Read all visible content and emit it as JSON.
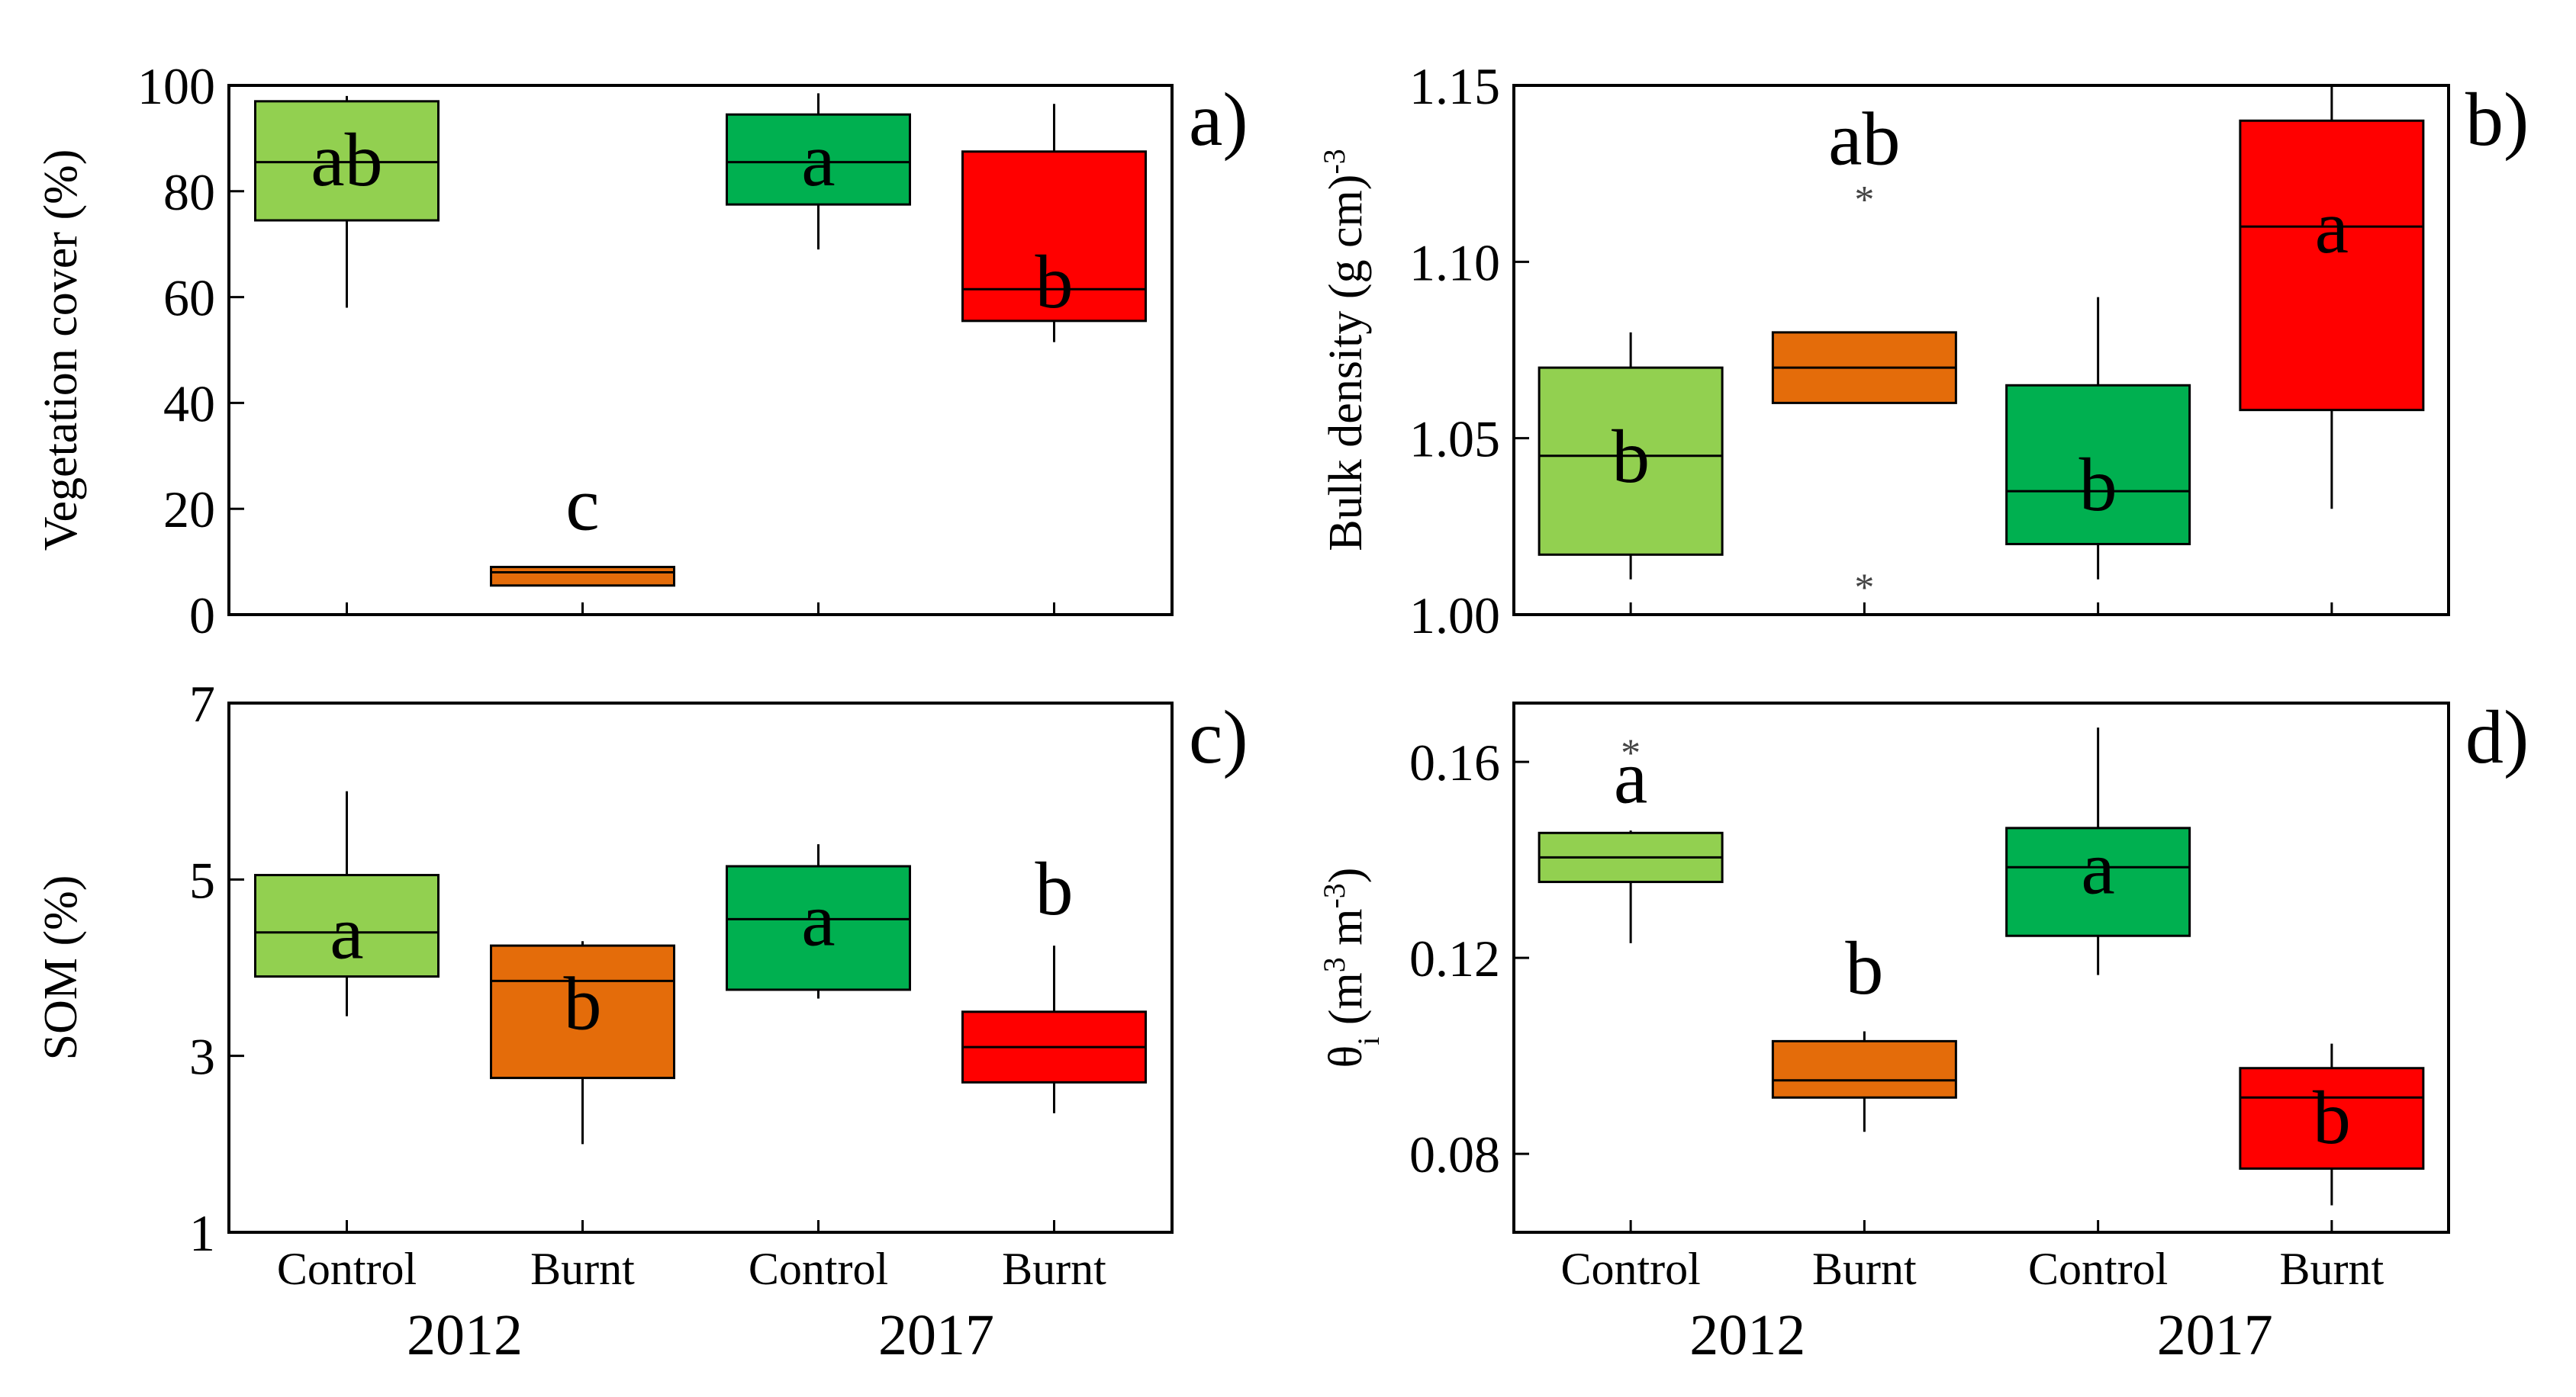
{
  "colors": {
    "control_2012": "#92d050",
    "burnt_2012": "#e46c0a",
    "control_2017": "#00b050",
    "burnt_2017": "#ff0000"
  },
  "chart_data": [
    {
      "type": "box",
      "panel_label": "a)",
      "ylabel": "Vegetation cover (%)",
      "ylim": [
        0,
        100
      ],
      "yticks": [
        "0",
        "20",
        "40",
        "60",
        "80",
        "100"
      ],
      "categories": [
        "Control",
        "Burnt",
        "Control",
        "Burnt"
      ],
      "groups": [
        "2012",
        "2017"
      ],
      "boxes": [
        {
          "name": "Control 2012",
          "color": "#92d050",
          "min": 58,
          "q1": 74.5,
          "median": 85.5,
          "q3": 97,
          "max": 98,
          "outliers": [],
          "letter": "ab",
          "letter_at": 86
        },
        {
          "name": "Burnt 2012",
          "color": "#e46c0a",
          "min": 5.5,
          "q1": 5.5,
          "median": 8,
          "q3": 9,
          "max": 9,
          "outliers": [],
          "letter": "c",
          "letter_at": 21
        },
        {
          "name": "Control 2017",
          "color": "#00b050",
          "min": 69,
          "q1": 77.5,
          "median": 85.5,
          "q3": 94.5,
          "max": 98.5,
          "outliers": [],
          "letter": "a",
          "letter_at": 86
        },
        {
          "name": "Burnt 2017",
          "color": "#ff0000",
          "min": 51.5,
          "q1": 55.5,
          "median": 61.5,
          "q3": 87.5,
          "max": 96.5,
          "outliers": [],
          "letter": "b",
          "letter_at": 63
        }
      ]
    },
    {
      "type": "box",
      "panel_label": "b)",
      "ylabel": "Bulk density (g cm",
      "ylabel_sup": "-3",
      "ylabel_end": ")",
      "ylim": [
        1.0,
        1.15
      ],
      "yticks": [
        "1.00",
        "1.05",
        "1.10",
        "1.15"
      ],
      "categories": [
        "Control",
        "Burnt",
        "Control",
        "Burnt"
      ],
      "groups": [
        "2012",
        "2017"
      ],
      "boxes": [
        {
          "name": "Control 2012",
          "color": "#92d050",
          "min": 1.01,
          "q1": 1.017,
          "median": 1.045,
          "q3": 1.07,
          "max": 1.08,
          "outliers": [],
          "letter": "b",
          "letter_at": 1.045
        },
        {
          "name": "Burnt 2012",
          "color": "#e46c0a",
          "min": 1.06,
          "q1": 1.06,
          "median": 1.07,
          "q3": 1.08,
          "max": 1.08,
          "outliers": [
            1.12,
            1.01
          ],
          "letter": "ab",
          "letter_at": 1.135
        },
        {
          "name": "Control 2017",
          "color": "#00b050",
          "min": 1.01,
          "q1": 1.02,
          "median": 1.035,
          "q3": 1.065,
          "max": 1.09,
          "outliers": [],
          "letter": "b",
          "letter_at": 1.037
        },
        {
          "name": "Burnt 2017",
          "color": "#ff0000",
          "min": 1.03,
          "q1": 1.058,
          "median": 1.11,
          "q3": 1.14,
          "max": 1.15,
          "outliers": [],
          "letter": "a",
          "letter_at": 1.11
        }
      ]
    },
    {
      "type": "box",
      "panel_label": "c)",
      "ylabel": "SOM (%)",
      "ylim": [
        1,
        7
      ],
      "yticks": [
        "1",
        "3",
        "5",
        "7"
      ],
      "categories": [
        "Control",
        "Burnt",
        "Control",
        "Burnt"
      ],
      "groups": [
        "2012",
        "2017"
      ],
      "boxes": [
        {
          "name": "Control 2012",
          "color": "#92d050",
          "min": 3.45,
          "q1": 3.9,
          "median": 4.4,
          "q3": 5.05,
          "max": 6.0,
          "outliers": [],
          "letter": "a",
          "letter_at": 4.4
        },
        {
          "name": "Burnt 2012",
          "color": "#e46c0a",
          "min": 2.0,
          "q1": 2.75,
          "median": 3.85,
          "q3": 4.25,
          "max": 4.3,
          "outliers": [],
          "letter": "b",
          "letter_at": 3.6
        },
        {
          "name": "Control 2017",
          "color": "#00b050",
          "min": 3.65,
          "q1": 3.75,
          "median": 4.55,
          "q3": 5.15,
          "max": 5.4,
          "outliers": [],
          "letter": "a",
          "letter_at": 4.55
        },
        {
          "name": "Burnt 2017",
          "color": "#ff0000",
          "min": 2.35,
          "q1": 2.7,
          "median": 3.1,
          "q3": 3.5,
          "max": 4.25,
          "outliers": [],
          "letter": "b",
          "letter_at": 4.9
        }
      ]
    },
    {
      "type": "box",
      "panel_label": "d)",
      "ylabel": "θ",
      "ylabel_sub": "i",
      "ylabel_end": " (m",
      "ylabel_sup": "3",
      "ylabel_end2": " m",
      "ylabel_sup2": "-3",
      "ylabel_end3": ")",
      "ylim": [
        0.064,
        0.172
      ],
      "yticks": [
        "0.08",
        "0.12",
        "0.16"
      ],
      "categories": [
        "Control",
        "Burnt",
        "Control",
        "Burnt"
      ],
      "groups": [
        "2012",
        "2017"
      ],
      "boxes": [
        {
          "name": "Control 2012",
          "color": "#92d050",
          "min": 0.123,
          "q1": 0.1355,
          "median": 0.1405,
          "q3": 0.1455,
          "max": 0.146,
          "outliers": [
            0.1635
          ],
          "letter": "a",
          "letter_at": 0.157
        },
        {
          "name": "Burnt 2012",
          "color": "#e46c0a",
          "min": 0.0845,
          "q1": 0.0915,
          "median": 0.095,
          "q3": 0.103,
          "max": 0.105,
          "outliers": [],
          "letter": "b",
          "letter_at": 0.118
        },
        {
          "name": "Control 2017",
          "color": "#00b050",
          "min": 0.1165,
          "q1": 0.1245,
          "median": 0.1385,
          "q3": 0.1465,
          "max": 0.167,
          "outliers": [],
          "letter": "a",
          "letter_at": 0.1385
        },
        {
          "name": "Burnt 2017",
          "color": "#ff0000",
          "min": 0.0695,
          "q1": 0.077,
          "median": 0.0915,
          "q3": 0.0975,
          "max": 0.1025,
          "outliers": [],
          "letter": "b",
          "letter_at": 0.0875
        }
      ]
    }
  ]
}
